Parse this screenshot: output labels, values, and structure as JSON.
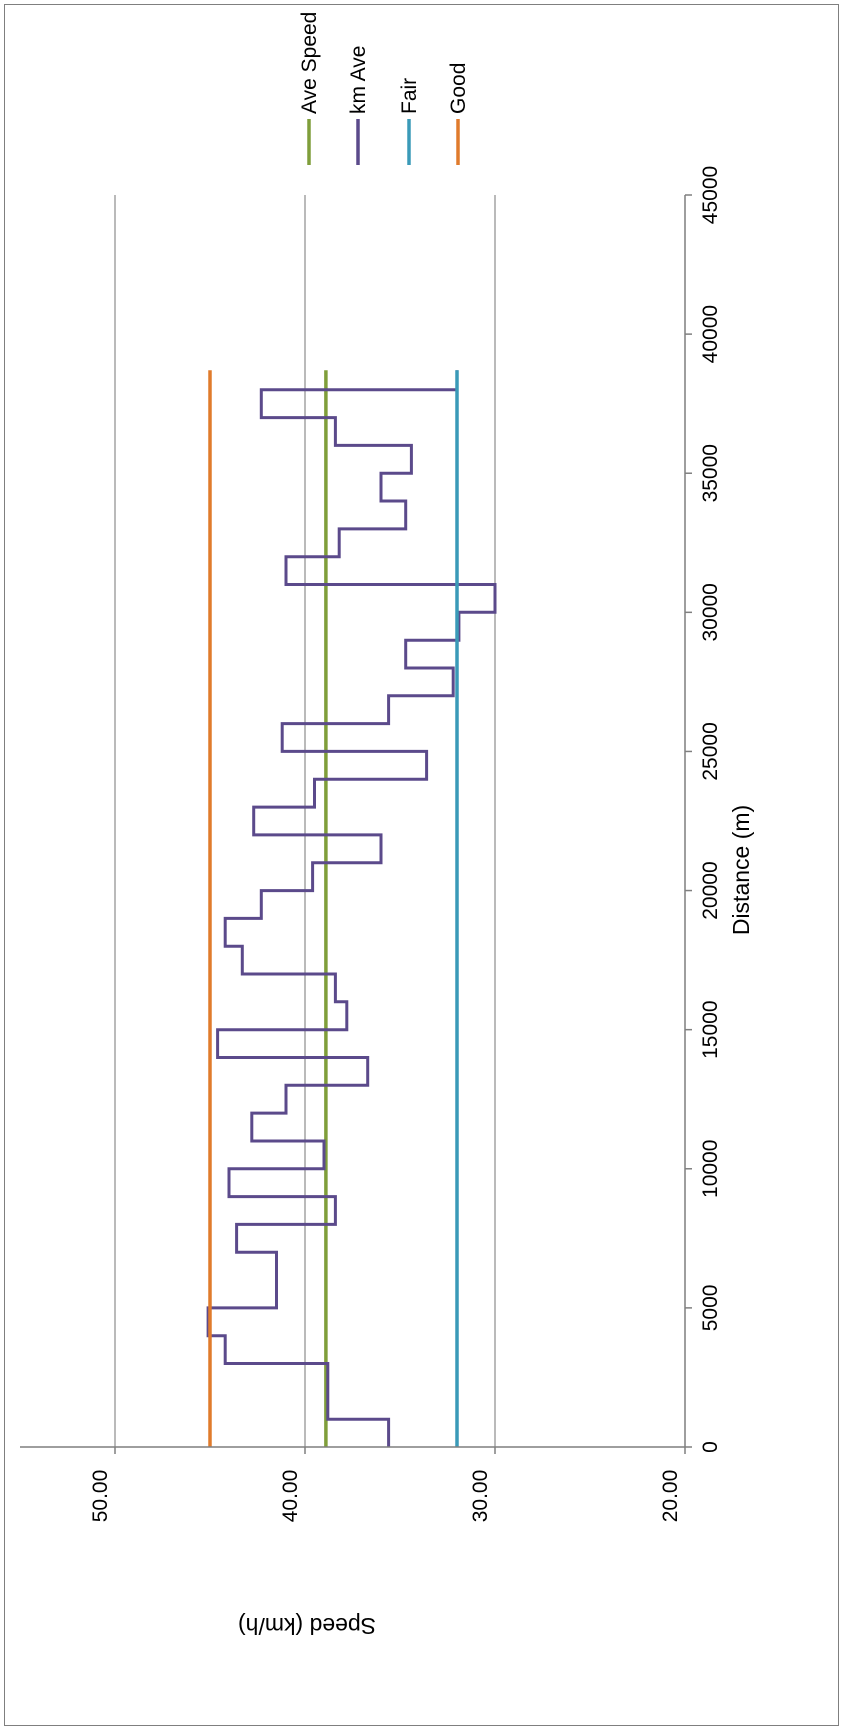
{
  "chart_data": {
    "type": "line",
    "xlabel": "Distance (m)",
    "ylabel": "Speed (km/h)",
    "xlim": [
      0,
      45000
    ],
    "ylim": [
      20,
      55
    ],
    "x_ticks": [
      0,
      5000,
      10000,
      15000,
      20000,
      25000,
      30000,
      35000,
      40000,
      45000
    ],
    "x_tick_labels": [
      "0",
      "5000",
      "10000",
      "15000",
      "20000",
      "25000",
      "30000",
      "35000",
      "40000",
      "45000"
    ],
    "y_ticks": [
      20,
      30,
      40,
      50
    ],
    "y_tick_labels": [
      "20.00",
      "30.00",
      "40.00",
      "50.00"
    ],
    "grid": "horizontal major gridlines",
    "legend_position": "right",
    "series": [
      {
        "name": "Ave Speed",
        "color": "#7f9e3a",
        "x": [
          0,
          38700
        ],
        "y": [
          38.9,
          38.9
        ]
      },
      {
        "name": "km Ave",
        "color": "#5b4a8b",
        "x": [
          0,
          1000,
          1000,
          2000,
          2000,
          3000,
          3000,
          4000,
          4000,
          5000,
          5000,
          6000,
          6000,
          7000,
          7000,
          8000,
          8000,
          9000,
          9000,
          10000,
          10000,
          11000,
          11000,
          12000,
          12000,
          13000,
          13000,
          14000,
          14000,
          15000,
          15000,
          16000,
          16000,
          17000,
          17000,
          18000,
          18000,
          19000,
          19000,
          20000,
          20000,
          21000,
          21000,
          22000,
          22000,
          23000,
          23000,
          24000,
          24000,
          25000,
          25000,
          26000,
          26000,
          27000,
          27000,
          28000,
          28000,
          29000,
          29000,
          30000,
          30000,
          31000,
          31000,
          32000,
          32000,
          33000,
          33000,
          34000,
          34000,
          35000,
          35000,
          36000,
          36000,
          37000,
          37000,
          38000,
          38000,
          38700
        ],
        "y": [
          35.6,
          35.6,
          38.8,
          38.8,
          38.8,
          38.8,
          44.2,
          44.2,
          45.1,
          45.1,
          41.5,
          41.5,
          41.5,
          41.5,
          43.6,
          43.6,
          38.4,
          38.4,
          44.0,
          44.0,
          39.0,
          39.0,
          42.8,
          42.8,
          41.0,
          41.0,
          36.7,
          36.7,
          44.6,
          44.6,
          37.8,
          37.8,
          38.4,
          38.4,
          43.3,
          43.3,
          44.2,
          44.2,
          42.3,
          42.3,
          39.6,
          39.6,
          36.0,
          36.0,
          42.7,
          42.7,
          39.5,
          39.5,
          33.6,
          33.6,
          41.2,
          41.2,
          35.6,
          35.6,
          32.2,
          32.2,
          34.7,
          34.7,
          31.9,
          31.9,
          30.0,
          30.0,
          41.0,
          41.0,
          38.2,
          38.2,
          34.7,
          34.7,
          36.0,
          36.0,
          34.4,
          34.4,
          38.4,
          38.4,
          42.3,
          42.3,
          32.0,
          32.0
        ]
      },
      {
        "name": "Fair",
        "color": "#3a9ab8",
        "x": [
          0,
          38700
        ],
        "y": [
          32.0,
          32.0
        ]
      },
      {
        "name": "Good",
        "color": "#e07b2c",
        "x": [
          0,
          38700
        ],
        "y": [
          45.0,
          45.0
        ]
      }
    ]
  }
}
